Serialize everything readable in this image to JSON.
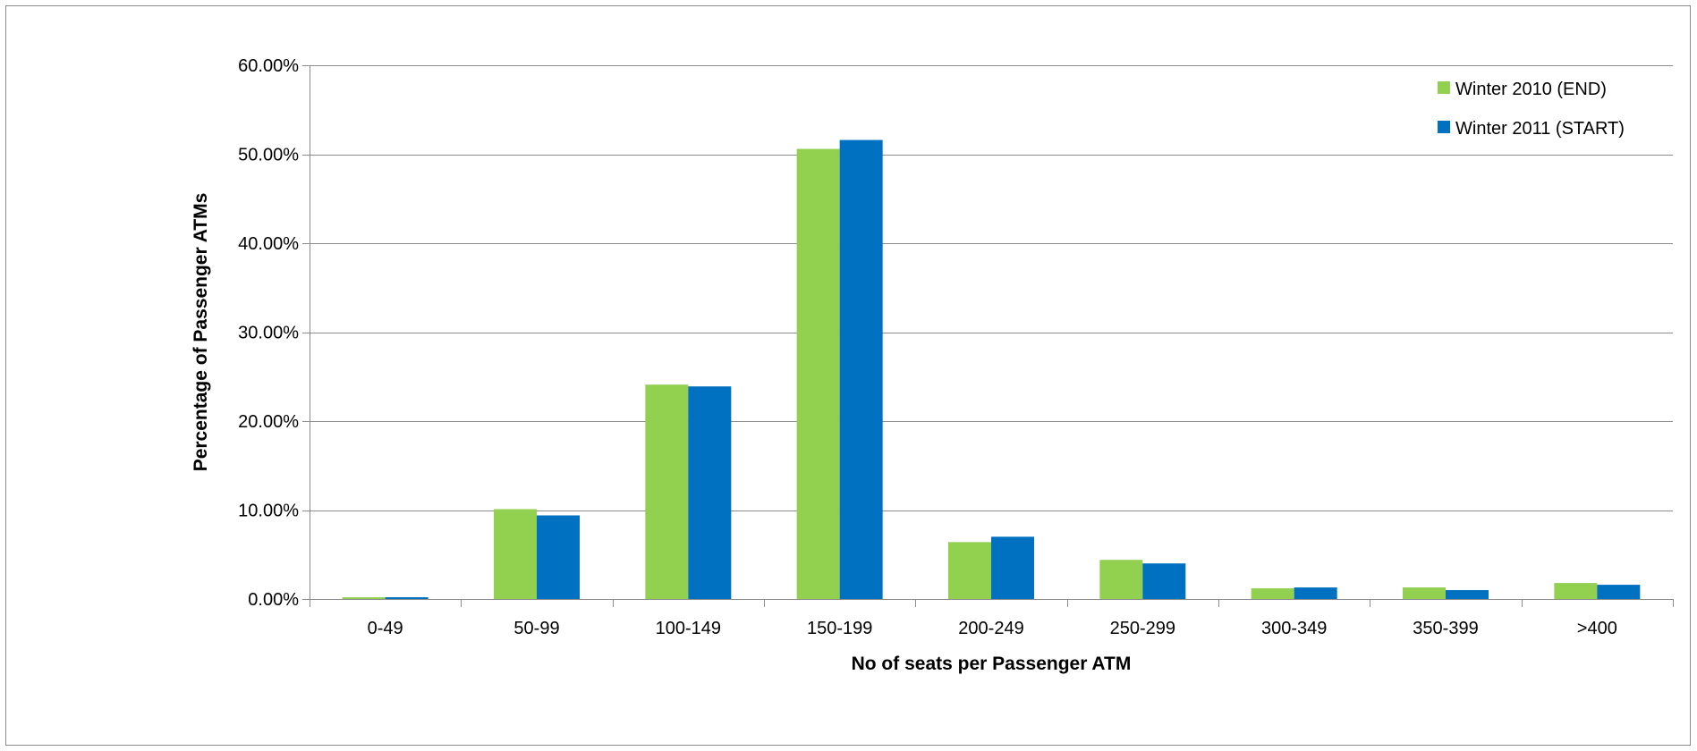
{
  "chart_data": {
    "type": "bar",
    "title": "",
    "xlabel": "No of seats per Passenger ATM",
    "ylabel": "Percentage of Passenger ATMs",
    "categories": [
      "0-49",
      "50-99",
      "100-149",
      "150-199",
      "200-249",
      "250-299",
      "300-349",
      "350-399",
      ">400"
    ],
    "series": [
      {
        "name": "Winter 2010  (END)",
        "color": "#92d050",
        "values": [
          0.2,
          10.1,
          24.1,
          50.6,
          6.4,
          4.4,
          1.2,
          1.3,
          1.8
        ]
      },
      {
        "name": "Winter 2011 (START)",
        "color": "#0070c0",
        "values": [
          0.2,
          9.4,
          23.9,
          51.6,
          7.0,
          4.0,
          1.3,
          1.0,
          1.6
        ]
      }
    ],
    "ylim": [
      0,
      60
    ],
    "yticks": [
      0,
      10,
      20,
      30,
      40,
      50,
      60
    ],
    "ytick_labels": [
      "0.00%",
      "10.00%",
      "20.00%",
      "30.00%",
      "40.00%",
      "50.00%",
      "60.00%"
    ],
    "grid": true,
    "legend_position": "top-right"
  }
}
